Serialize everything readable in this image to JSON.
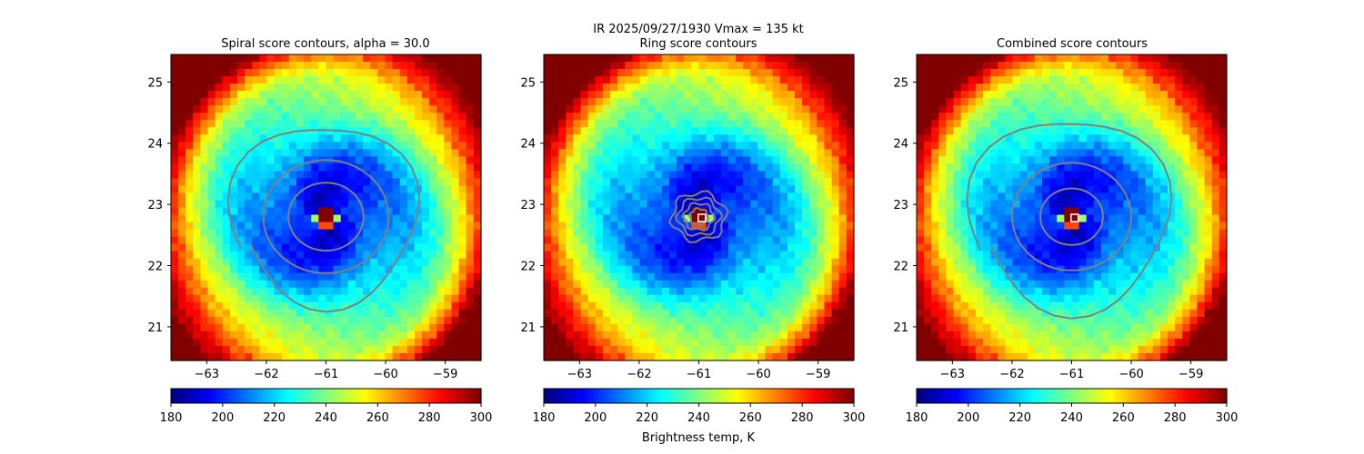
{
  "figure": {
    "suptitle_line1": "IR  2025/09/27/1930    Vmax = 135 kt",
    "colorbar_label": "Brightness temp, K"
  },
  "chart_data": [
    {
      "type": "heatmap",
      "title": "Spiral score contours, alpha = 30.0",
      "xlim": [
        -63.6,
        -58.4
      ],
      "ylim": [
        20.45,
        25.45
      ],
      "xticks": [
        -63,
        -62,
        -61,
        -60,
        -59
      ],
      "yticks": [
        21,
        22,
        23,
        24,
        25
      ],
      "eye_center": [
        -61.0,
        22.8
      ],
      "marker": null,
      "contour_style": "spiral",
      "contour_levels": [
        0.6,
        1.0
      ],
      "colorbar": {
        "min": 180,
        "max": 300,
        "ticks": [
          180,
          200,
          220,
          240,
          260,
          280,
          300
        ]
      }
    },
    {
      "type": "heatmap",
      "title": "Ring score contours",
      "xlim": [
        -63.6,
        -58.4
      ],
      "ylim": [
        20.45,
        25.45
      ],
      "xticks": [
        -63,
        -62,
        -61,
        -60,
        -59
      ],
      "yticks": [
        21,
        22,
        23,
        24,
        25
      ],
      "eye_center": [
        -61.0,
        22.8
      ],
      "marker": {
        "x": -60.95,
        "y": 22.78,
        "color": "#ffffff"
      },
      "contour_style": "ring",
      "contour_levels": [
        0.15,
        0.25,
        0.35,
        0.45
      ],
      "colorbar": {
        "min": 180,
        "max": 300,
        "ticks": [
          180,
          200,
          220,
          240,
          260,
          280,
          300
        ]
      }
    },
    {
      "type": "heatmap",
      "title": "Combined score contours",
      "xlim": [
        -63.6,
        -58.4
      ],
      "ylim": [
        20.45,
        25.45
      ],
      "xticks": [
        -63,
        -62,
        -61,
        -60,
        -59
      ],
      "yticks": [
        21,
        22,
        23,
        24,
        25
      ],
      "eye_center": [
        -61.0,
        22.8
      ],
      "marker": {
        "x": -60.95,
        "y": 22.78,
        "color": "#ffffff"
      },
      "contour_style": "combined",
      "contour_levels": [
        0.5,
        0.95
      ],
      "colorbar": {
        "min": 180,
        "max": 300,
        "ticks": [
          180,
          200,
          220,
          240,
          260,
          280,
          300
        ]
      }
    }
  ]
}
